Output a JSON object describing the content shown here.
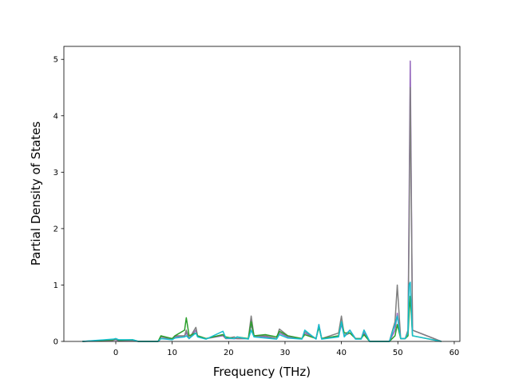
{
  "chart_data": {
    "type": "line",
    "xlabel": "Frequency (THz)",
    "ylabel": "Partial Density of States",
    "x": [
      -5.9,
      -0.5,
      0,
      0.5,
      3,
      4,
      7.5,
      8,
      10,
      10.5,
      12.2,
      12.5,
      13,
      14.2,
      14.5,
      16,
      19,
      19.5,
      21,
      21.5,
      23.5,
      24,
      24.5,
      26.5,
      28.5,
      29,
      30.5,
      33,
      33.5,
      35.5,
      36,
      36.5,
      39.5,
      40,
      40.5,
      41.5,
      42.5,
      43.5,
      44,
      45,
      48.5,
      49.5,
      49.9,
      50.5,
      51.3,
      51.8,
      52,
      52.2,
      52.6,
      57.7
    ],
    "series": [
      {
        "color": "#9467bd",
        "values": [
          0,
          0.02,
          0.03,
          0.01,
          0.02,
          0,
          0,
          0.05,
          0.05,
          0.08,
          0.1,
          0.15,
          0.05,
          0.2,
          0.1,
          0.05,
          0.1,
          0.05,
          0.05,
          0.05,
          0.05,
          0.3,
          0.1,
          0.08,
          0.05,
          0.15,
          0.08,
          0.05,
          0.15,
          0.05,
          0.3,
          0.05,
          0.1,
          0.3,
          0.1,
          0.2,
          0.05,
          0.05,
          0.15,
          0,
          0,
          0.2,
          0.5,
          0.05,
          0.05,
          0.15,
          2.5,
          4.97,
          0.2,
          0
        ]
      },
      {
        "color": "#7f7f7f",
        "values": [
          0,
          0.02,
          0.04,
          0.02,
          0.02,
          0,
          0,
          0.08,
          0.05,
          0.1,
          0.1,
          0.2,
          0.05,
          0.25,
          0.1,
          0.05,
          0.12,
          0.05,
          0.08,
          0.05,
          0.05,
          0.45,
          0.1,
          0.1,
          0.05,
          0.22,
          0.1,
          0.05,
          0.18,
          0.05,
          0.28,
          0.05,
          0.15,
          0.45,
          0.1,
          0.15,
          0.05,
          0.05,
          0.2,
          0,
          0,
          0.35,
          1.0,
          0.05,
          0.05,
          0.2,
          2.0,
          4.5,
          0.2,
          0
        ]
      },
      {
        "color": "#2ca02c",
        "values": [
          0,
          0.03,
          0.05,
          0.02,
          0.03,
          0,
          0,
          0.1,
          0.05,
          0.1,
          0.2,
          0.42,
          0.1,
          0.15,
          0.1,
          0.05,
          0.12,
          0.08,
          0.05,
          0.08,
          0.05,
          0.35,
          0.1,
          0.12,
          0.08,
          0.18,
          0.1,
          0.05,
          0.12,
          0.05,
          0.25,
          0.05,
          0.1,
          0.35,
          0.15,
          0.15,
          0.05,
          0.05,
          0.12,
          0,
          0,
          0.1,
          0.3,
          0.05,
          0.05,
          0.1,
          0.5,
          0.8,
          0.1,
          0
        ]
      },
      {
        "color": "#17becf",
        "values": [
          0,
          0.04,
          0.05,
          0.03,
          0.03,
          0,
          0,
          0.05,
          0.03,
          0.06,
          0.08,
          0.1,
          0.05,
          0.15,
          0.08,
          0.04,
          0.18,
          0.06,
          0.05,
          0.08,
          0.04,
          0.2,
          0.08,
          0.06,
          0.04,
          0.12,
          0.06,
          0.04,
          0.2,
          0.04,
          0.3,
          0.04,
          0.08,
          0.35,
          0.08,
          0.2,
          0.04,
          0.04,
          0.2,
          0,
          0,
          0.3,
          0.45,
          0.05,
          0.05,
          0.15,
          1.0,
          1.05,
          0.1,
          0
        ]
      }
    ],
    "xlim": [
      -9.2,
      61
    ],
    "ylim": [
      0,
      5.23
    ],
    "xticks": [
      0,
      10,
      20,
      30,
      40,
      50,
      60
    ],
    "yticks": [
      0,
      1,
      2,
      3,
      4,
      5
    ]
  }
}
